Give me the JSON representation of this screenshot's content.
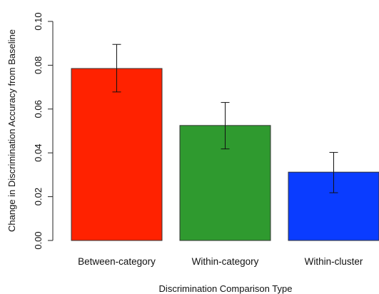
{
  "chart_data": {
    "type": "bar",
    "title": "",
    "xlabel": "Discrimination Comparison Type",
    "ylabel": "Change in Discrimination Accuracy from Baseline",
    "ylim": [
      0,
      0.1
    ],
    "yticks": [
      "0.00",
      "0.02",
      "0.04",
      "0.06",
      "0.08",
      "0.10"
    ],
    "categories": [
      "Between-category",
      "Within-category",
      "Within-cluster"
    ],
    "values": [
      0.0785,
      0.0525,
      0.0312
    ],
    "error_low": [
      0.0678,
      0.0418,
      0.0218
    ],
    "error_high": [
      0.0895,
      0.063,
      0.0402
    ],
    "colors": [
      "#ff2200",
      "#2f9a2f",
      "#0a3cff"
    ],
    "grid": false,
    "legend": false
  }
}
